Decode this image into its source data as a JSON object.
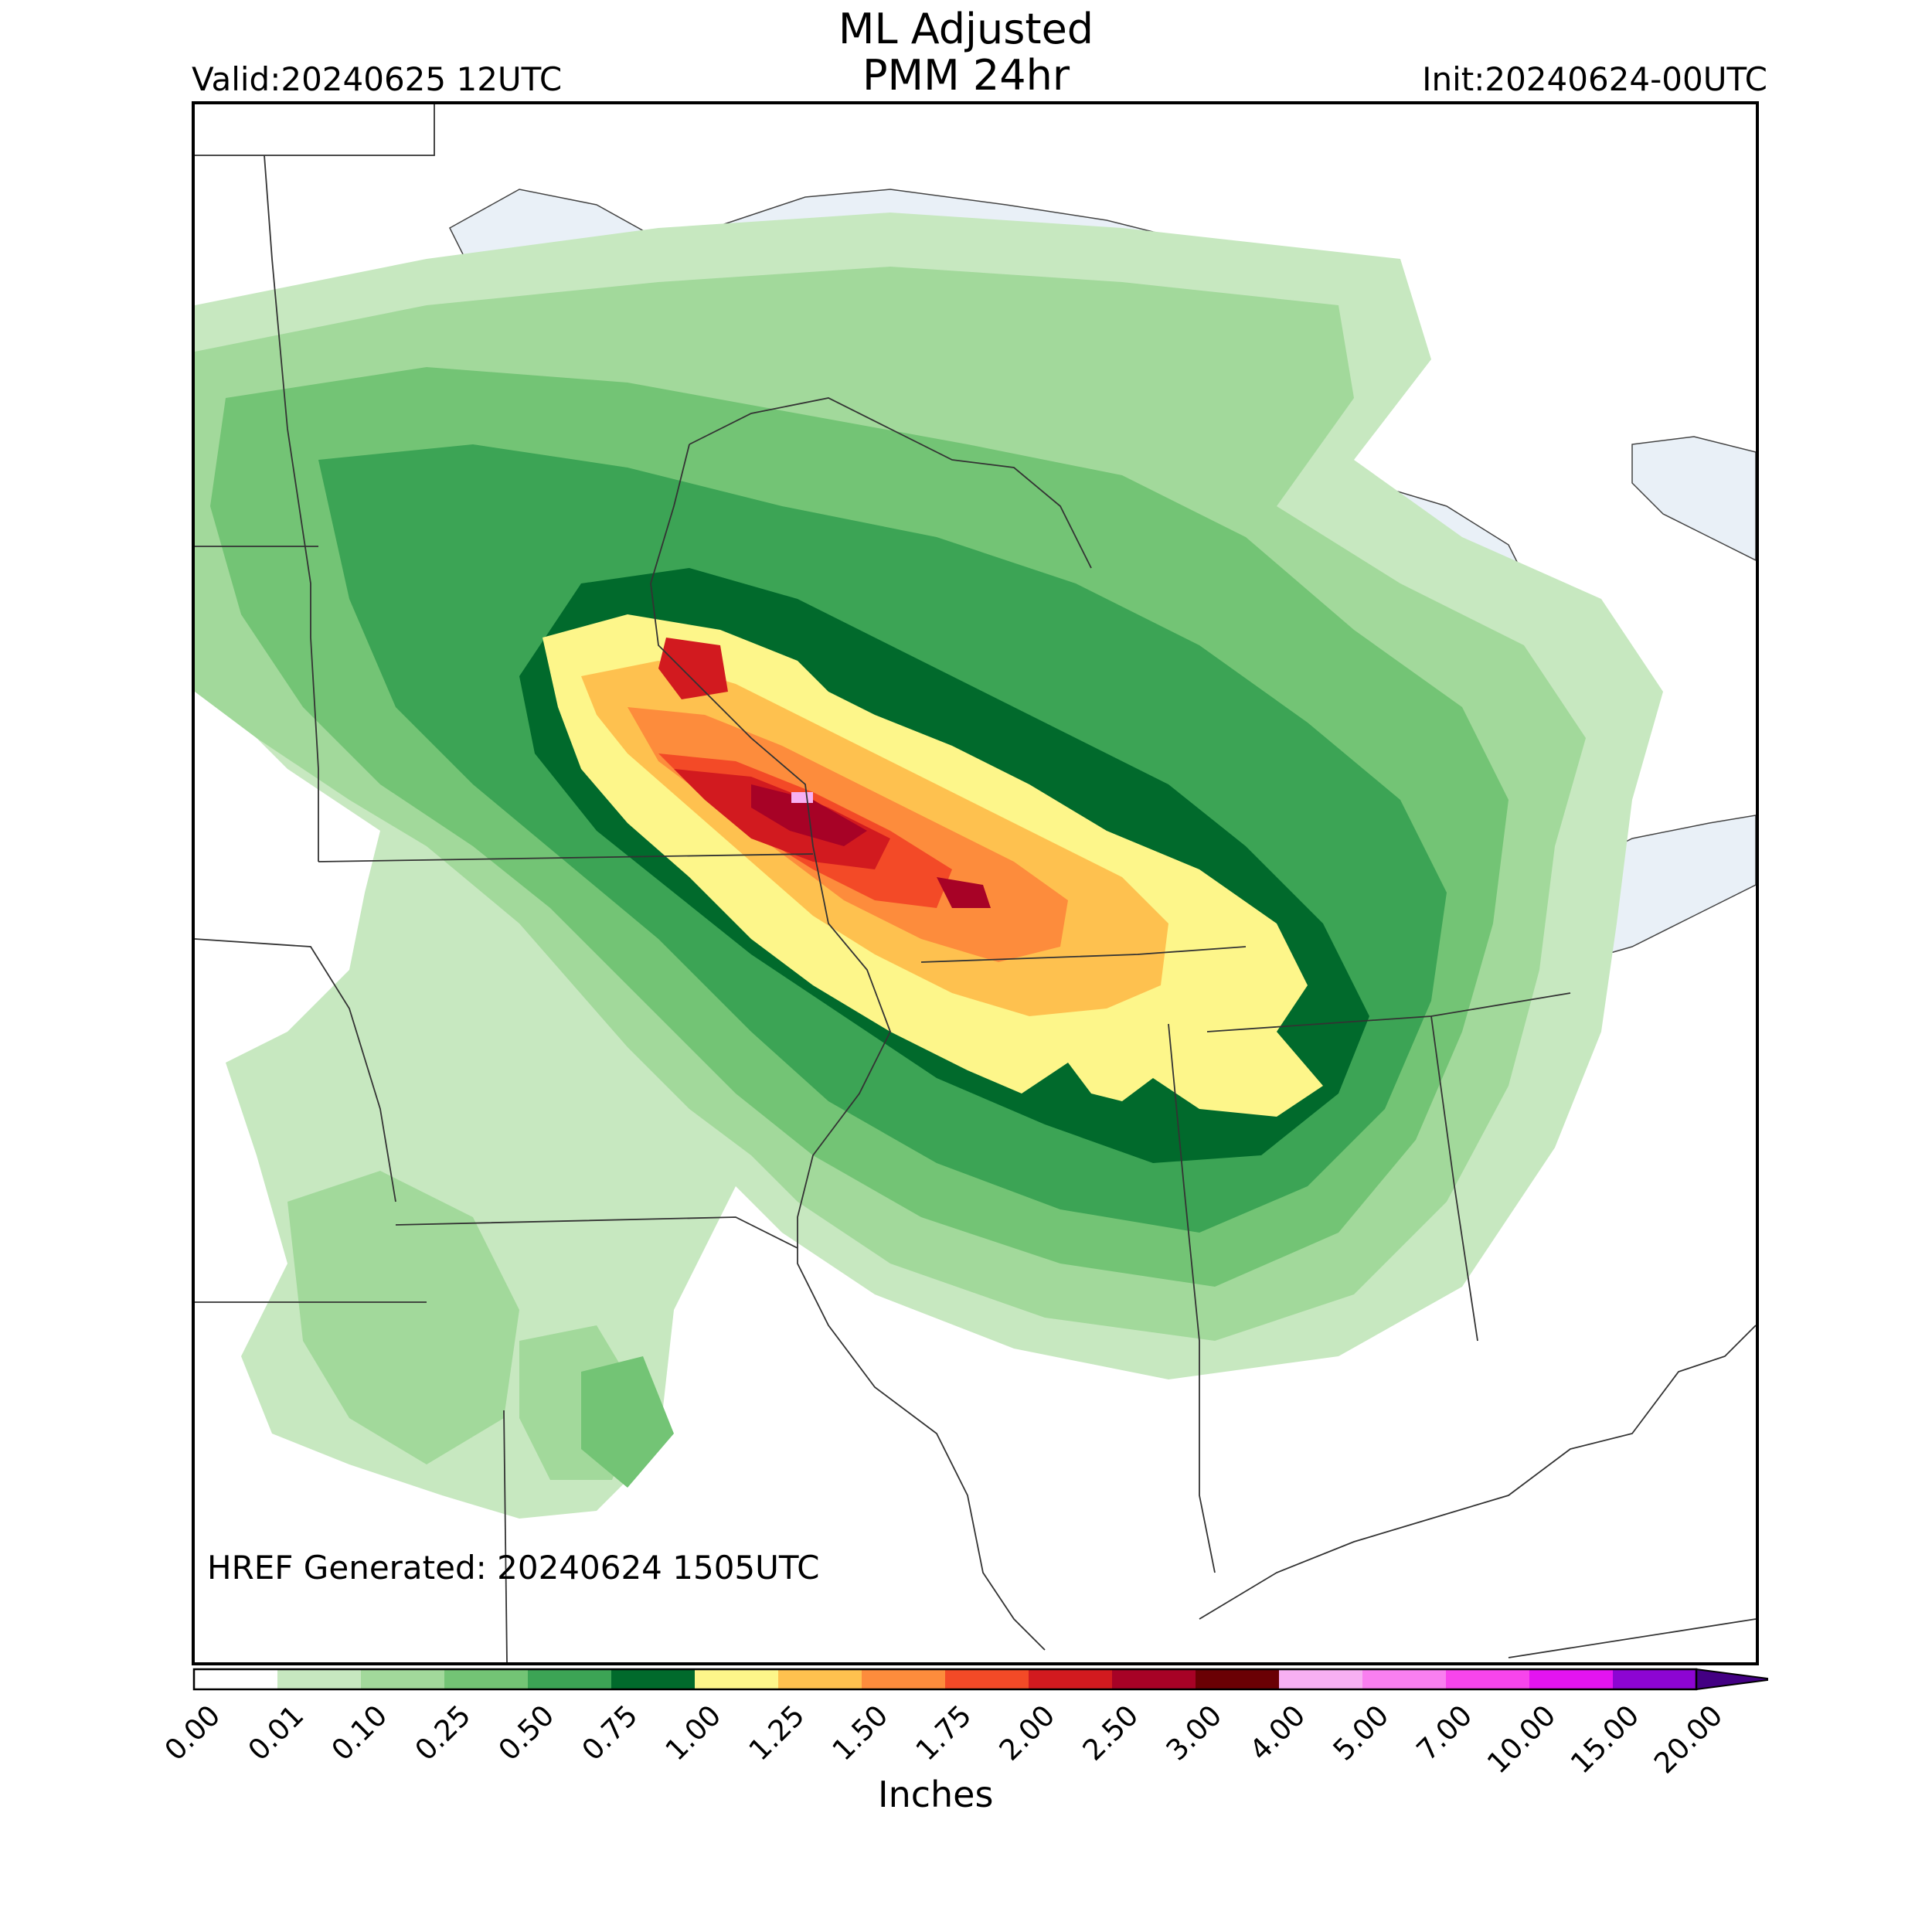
{
  "header": {
    "title_line1": "ML Adjusted",
    "title_line2": "PMM 24hr",
    "valid": "Valid:20240625 12UTC",
    "init": "Init:20240624-00UTC"
  },
  "map": {
    "generated": "HREF Generated: 20240624 1505UTC",
    "features": [
      "state-borders",
      "great-lakes",
      "precipitation-field"
    ],
    "max_label": "4.00"
  },
  "colorbar": {
    "units": "Inches",
    "ticks": [
      "0.00",
      "0.01",
      "0.10",
      "0.25",
      "0.50",
      "0.75",
      "1.00",
      "1.25",
      "1.50",
      "1.75",
      "2.00",
      "2.50",
      "3.00",
      "4.00",
      "5.00",
      "7.00",
      "10.00",
      "15.00",
      "20.00"
    ],
    "colors": [
      "#ffffff",
      "#c7e8c0",
      "#a2d99b",
      "#73c475",
      "#3ca455",
      "#016a2c",
      "#fdf68a",
      "#fec14f",
      "#fd8c3c",
      "#f34a27",
      "#d21a1f",
      "#a70226",
      "#6a0004",
      "#f7b0f3",
      "#f97ff0",
      "#f745ec",
      "#e314f0",
      "#8d05d3",
      "#430083"
    ]
  },
  "colors": {
    "lake": "#e9f0f7",
    "border": "#333333"
  }
}
